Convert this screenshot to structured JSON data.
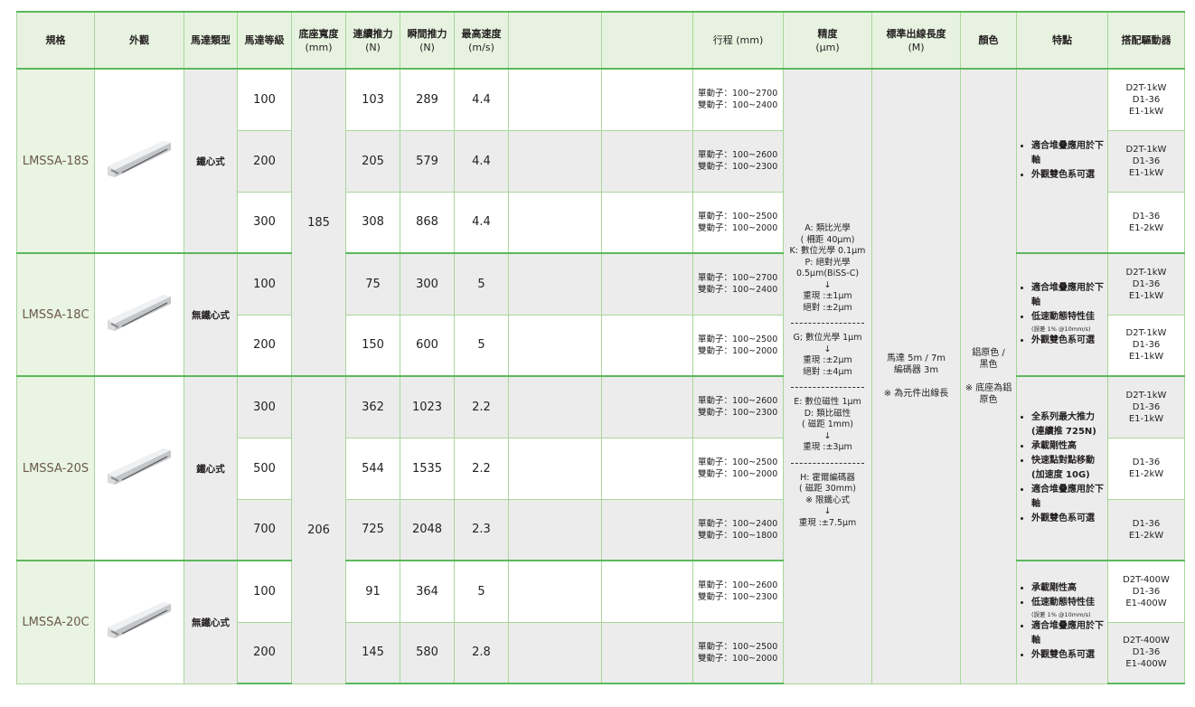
{
  "header": {
    "spec": "規格",
    "appearance": "外觀",
    "motor_type": "馬達類型",
    "motor_grade": "馬達等級",
    "base_width": "底座寬度",
    "base_width_unit": "(mm)",
    "cont_force": "連續推力",
    "cont_force_unit": "(N)",
    "peak_force": "瞬間推力",
    "peak_force_unit": "(N)",
    "max_speed": "最高速度",
    "max_speed_unit": "(m/s)",
    "blank1": "",
    "blank2": "",
    "stroke": "行程 (mm)",
    "precision": "精度",
    "precision_unit": "(μm)",
    "cable": "標準出線長度",
    "cable_unit": "(M)",
    "color": "顏色",
    "features": "特點",
    "drivers": "搭配驅動器"
  },
  "base_widths": [
    "185",
    "206"
  ],
  "precision": [
    [
      "A: 類比光學",
      "( 柵距 40μm)",
      "K: 數位光學 0.1μm",
      "P: 絕對光學",
      "0.5μm(BiSS-C)",
      "↓",
      "重現 :±1μm",
      "絕對 :±2μm"
    ],
    [
      "G; 數位光學 1μm",
      "↓",
      "重現 :±2μm",
      "絕對 :±4μm"
    ],
    [
      "E: 數位磁性 1μm",
      "D: 類比磁性",
      "( 磁距 1mm)",
      "↓",
      "重現 :±3μm"
    ],
    [
      "H: 霍爾編碼器",
      "( 磁距 30mm)",
      "※ 限鐵心式",
      "↓",
      "重現 :±7.5μm"
    ]
  ],
  "cable": [
    "馬達 5m / 7m",
    "編碼器 3m",
    "",
    "※ 為元件出線長"
  ],
  "color": [
    "鋁原色 /",
    "黑色",
    "",
    "※ 底座為鋁",
    "原色"
  ],
  "models": [
    {
      "name": "LMSSA-18S",
      "type": "鐵心式",
      "features": [
        {
          "t": "適合堆疊應用於下軸"
        },
        {
          "t": "外觀雙色系可選"
        }
      ],
      "rows": [
        {
          "grade": "100",
          "cont": "103",
          "peak": "289",
          "speed": "4.4",
          "stroke": [
            "單動子：100~2700",
            "雙動子：100~2400"
          ],
          "drivers": [
            "D2T-1kW",
            "D1-36",
            "E1-1kW"
          ]
        },
        {
          "grade": "200",
          "cont": "205",
          "peak": "579",
          "speed": "4.4",
          "stroke": [
            "單動子：100~2600",
            "雙動子：100~2300"
          ],
          "drivers": [
            "D2T-1kW",
            "D1-36",
            "E1-1kW"
          ]
        },
        {
          "grade": "300",
          "cont": "308",
          "peak": "868",
          "speed": "4.4",
          "stroke": [
            "單動子：100~2500",
            "雙動子：100~2000"
          ],
          "drivers": [
            "D1-36",
            "E1-2kW"
          ]
        }
      ]
    },
    {
      "name": "LMSSA-18C",
      "type": "無鐵心式",
      "features": [
        {
          "t": "適合堆疊應用於下軸"
        },
        {
          "t": "低速動態特性佳",
          "note": "(誤差 1% @10mm/s)"
        },
        {
          "t": "外觀雙色系可選"
        }
      ],
      "rows": [
        {
          "grade": "100",
          "cont": "75",
          "peak": "300",
          "speed": "5",
          "stroke": [
            "單動子：100~2700",
            "雙動子：100~2400"
          ],
          "drivers": [
            "D2T-1kW",
            "D1-36",
            "E1-1kW"
          ]
        },
        {
          "grade": "200",
          "cont": "150",
          "peak": "600",
          "speed": "5",
          "stroke": [
            "單動子：100~2500",
            "雙動子：100~2000"
          ],
          "drivers": [
            "D2T-1kW",
            "D1-36",
            "E1-1kW"
          ]
        }
      ]
    },
    {
      "name": "LMSSA-20S",
      "type": "鐵心式",
      "features": [
        {
          "t": "全系列最大推力",
          "note2": "(連續推 725N)"
        },
        {
          "t": "承載剛性高"
        },
        {
          "t": "快速點對點移動",
          "note2": "(加速度 10G)"
        },
        {
          "t": "適合堆疊應用於下軸"
        },
        {
          "t": "外觀雙色系可選"
        }
      ],
      "rows": [
        {
          "grade": "300",
          "cont": "362",
          "peak": "1023",
          "speed": "2.2",
          "stroke": [
            "單動子：100~2600",
            "雙動子：100~2300"
          ],
          "drivers": [
            "D2T-1kW",
            "D1-36",
            "E1-1kW"
          ]
        },
        {
          "grade": "500",
          "cont": "544",
          "peak": "1535",
          "speed": "2.2",
          "stroke": [
            "單動子：100~2500",
            "雙動子：100~2000"
          ],
          "drivers": [
            "D1-36",
            "E1-2kW"
          ]
        },
        {
          "grade": "700",
          "cont": "725",
          "peak": "2048",
          "speed": "2.3",
          "stroke": [
            "單動子：100~2400",
            "雙動子：100~1800"
          ],
          "drivers": [
            "D1-36",
            "E1-2kW"
          ]
        }
      ]
    },
    {
      "name": "LMSSA-20C",
      "type": "無鐵心式",
      "features": [
        {
          "t": "承載剛性高"
        },
        {
          "t": "低速動態特性佳",
          "note": "(誤差 1% @10mm/s)"
        },
        {
          "t": "適合堆疊應用於下軸"
        },
        {
          "t": "外觀雙色系可選"
        }
      ],
      "rows": [
        {
          "grade": "100",
          "cont": "91",
          "peak": "364",
          "speed": "5",
          "stroke": [
            "單動子：100~2600",
            "雙動子：100~2300"
          ],
          "drivers": [
            "D2T-400W",
            "D1-36",
            "E1-400W"
          ]
        },
        {
          "grade": "200",
          "cont": "145",
          "peak": "580",
          "speed": "2.8",
          "stroke": [
            "單動子：100~2500",
            "雙動子：100~2000"
          ],
          "drivers": [
            "D2T-400W",
            "D1-36",
            "E1-400W"
          ]
        }
      ]
    }
  ]
}
